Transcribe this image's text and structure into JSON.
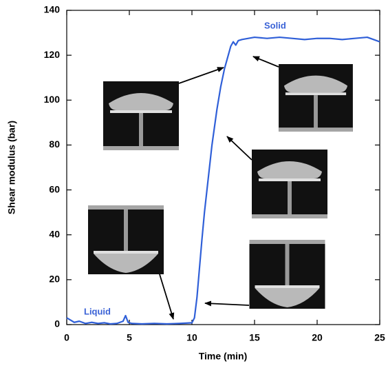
{
  "chart_data": {
    "type": "line",
    "xlabel": "Time (min)",
    "ylabel": "Shear modulus (bar)",
    "x": [
      0,
      0.3,
      0.6,
      1,
      1.5,
      2,
      2.5,
      3,
      3.5,
      4,
      4.5,
      4.7,
      4.9,
      5.2,
      6,
      7,
      8,
      9,
      10,
      10.2,
      10.4,
      10.6,
      10.8,
      11,
      11.3,
      11.6,
      12,
      12.3,
      12.6,
      12.9,
      13.1,
      13.3,
      13.5,
      13.7,
      14,
      14.5,
      15,
      16,
      17,
      18,
      19,
      20,
      21,
      22,
      23,
      24,
      24.5,
      25
    ],
    "values": [
      3,
      2,
      1,
      1.5,
      0.5,
      1,
      0.5,
      0.8,
      0.3,
      0.5,
      1.5,
      4,
      1,
      0.5,
      0.3,
      0.5,
      0.3,
      0.5,
      0.8,
      3,
      12,
      25,
      38,
      50,
      65,
      80,
      96,
      106,
      114,
      120,
      124,
      126,
      124.5,
      126.5,
      127,
      127.5,
      128,
      127.5,
      128,
      127.5,
      127,
      127.5,
      127.5,
      127,
      127.5,
      128,
      127,
      126
    ],
    "color": "#2f5fd8",
    "xlim": [
      0,
      25
    ],
    "xticks": [
      0,
      5,
      10,
      15,
      20,
      25
    ],
    "ylim": [
      0,
      140
    ],
    "yticks": [
      0,
      20,
      40,
      60,
      80,
      100,
      120,
      140
    ],
    "annotations": [
      "Liquid",
      "Solid"
    ]
  }
}
